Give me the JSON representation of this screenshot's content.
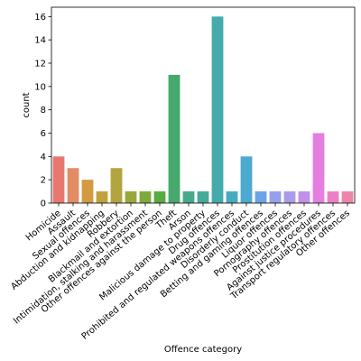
{
  "chart_data": {
    "type": "bar",
    "xlabel": "Offence category",
    "ylabel": "count",
    "ylim": [
      0,
      16.8
    ],
    "yticks": [
      0,
      2,
      4,
      6,
      8,
      10,
      12,
      14,
      16
    ],
    "categories": [
      "Homicide",
      "Assault",
      "Sexual offences",
      "Abduction and kidnapping",
      "Robbery",
      "Blackmail and extortion",
      "Intimidation, stalking and harassment",
      "Other offences against the person",
      "Theft",
      "Arson",
      "Malicious damage to property",
      "Drug offences",
      "Prohibited and regulated weapons offences",
      "Disorderly conduct",
      "Betting and gaming offences",
      "Liquor offences",
      "Pornography offences",
      "Prostitution offences",
      "Against justice procedures",
      "Transport regulatory offences",
      "Other offences"
    ],
    "values": [
      4,
      3,
      2,
      1,
      3,
      1,
      1,
      1,
      11,
      1,
      1,
      16,
      1,
      4,
      1,
      1,
      1,
      1,
      6,
      1,
      1
    ],
    "colors": [
      "#e8776f",
      "#e38c64",
      "#d29a41",
      "#c1a13c",
      "#b2a43f",
      "#98a83a",
      "#7daa38",
      "#56ab42",
      "#45a86d",
      "#47a989",
      "#45a99b",
      "#45aaac",
      "#47aabf",
      "#4ea9d0",
      "#6aa4e4",
      "#96a0ea",
      "#aa9aea",
      "#c18fea",
      "#e47fe0",
      "#ec7fc3",
      "#ee85a8"
    ],
    "grid": false,
    "legend": "none"
  }
}
